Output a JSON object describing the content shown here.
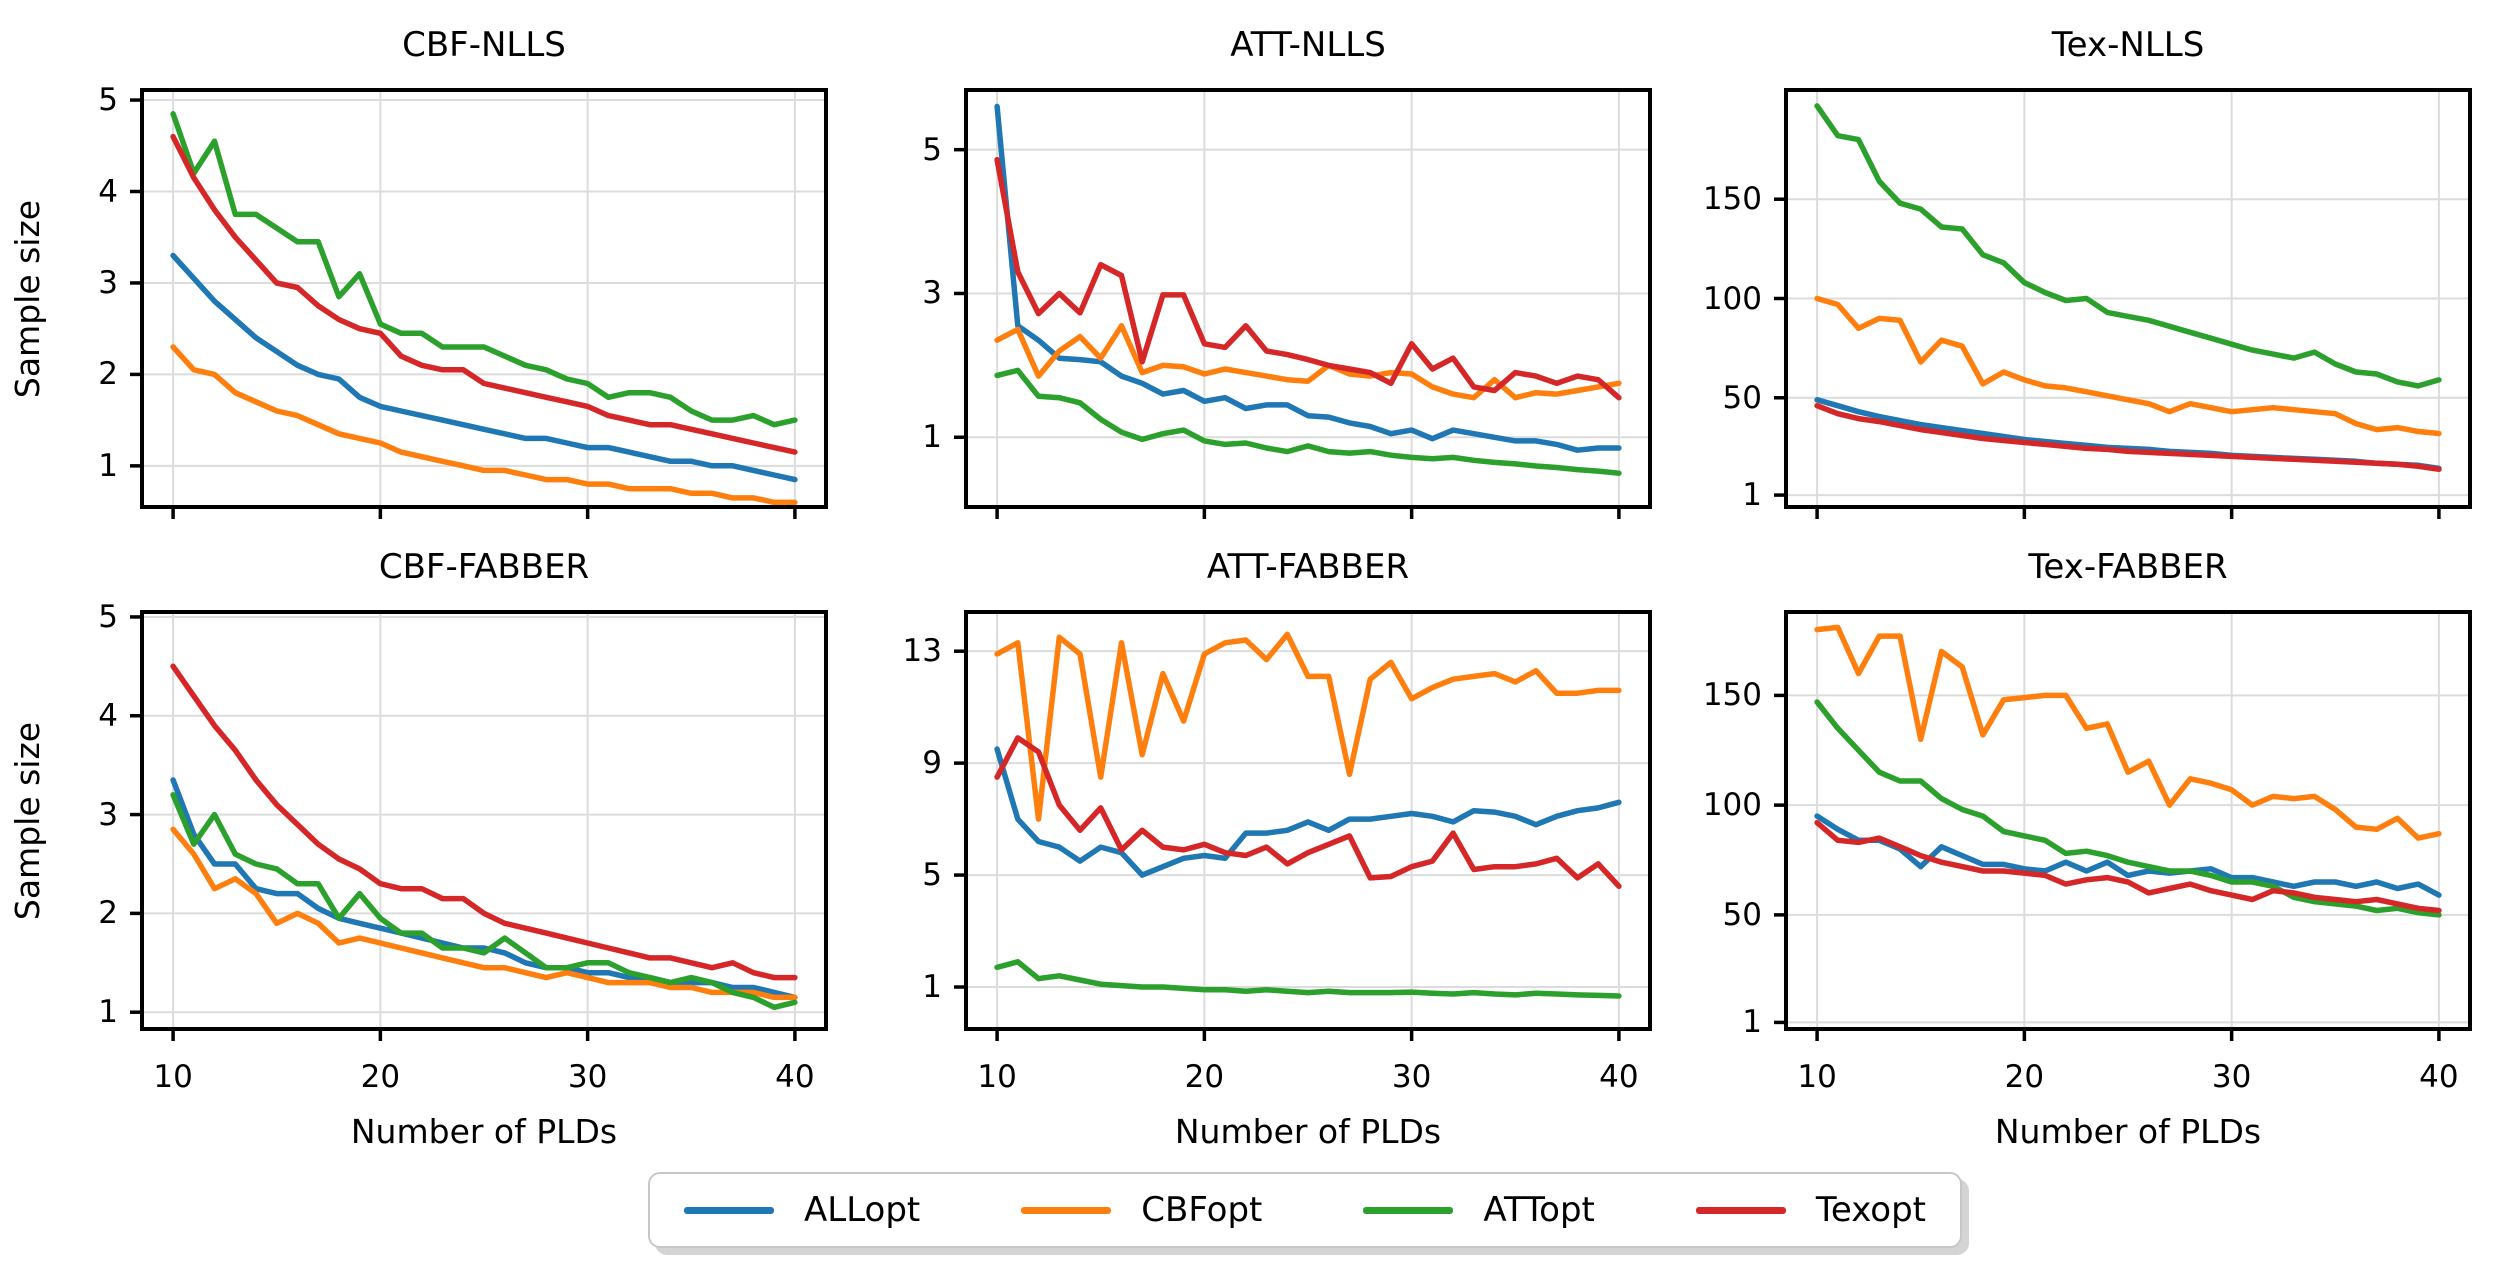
{
  "figure": {
    "ylabel": "Sample size",
    "xlabel": "Number of PLDs",
    "background": "#ffffff",
    "grid_color": "#dcdcdc",
    "spine_color": "#000000"
  },
  "legend": {
    "entries": [
      {
        "label": "ALLopt",
        "color": "#1f77b4"
      },
      {
        "label": "CBFopt",
        "color": "#ff7f0e"
      },
      {
        "label": "ATTopt",
        "color": "#2ca02c"
      },
      {
        "label": "Texopt",
        "color": "#d62728"
      }
    ]
  },
  "chart_data": [
    {
      "type": "line",
      "title": "CBF-NLLS",
      "xlabel": "",
      "ylabel": "Sample size",
      "x_start": 10,
      "x_end": 40,
      "xticks": [
        10,
        20,
        30,
        40
      ],
      "xlim": [
        8.5,
        41.5
      ],
      "yticks": [
        1,
        2,
        3,
        4,
        5
      ],
      "ylim": [
        0.55,
        5.11
      ],
      "grid": true,
      "show_xticklabels": false,
      "show_xlabel": false,
      "show_ylabel": true,
      "series": [
        {
          "name": "ALLopt",
          "color": "#1f77b4",
          "values": [
            3.3,
            3.05,
            2.8,
            2.6,
            2.4,
            2.25,
            2.1,
            2.0,
            1.95,
            1.75,
            1.65,
            1.6,
            1.55,
            1.5,
            1.45,
            1.4,
            1.35,
            1.3,
            1.3,
            1.25,
            1.2,
            1.2,
            1.15,
            1.1,
            1.05,
            1.05,
            1.0,
            1.0,
            0.95,
            0.9,
            0.85
          ]
        },
        {
          "name": "CBFopt",
          "color": "#ff7f0e",
          "values": [
            2.3,
            2.05,
            2.0,
            1.8,
            1.7,
            1.6,
            1.55,
            1.45,
            1.35,
            1.3,
            1.25,
            1.15,
            1.1,
            1.05,
            1.0,
            0.95,
            0.95,
            0.9,
            0.85,
            0.85,
            0.8,
            0.8,
            0.75,
            0.75,
            0.75,
            0.7,
            0.7,
            0.65,
            0.65,
            0.6,
            0.6
          ]
        },
        {
          "name": "ATTopt",
          "color": "#2ca02c",
          "values": [
            4.85,
            4.2,
            4.55,
            3.75,
            3.75,
            3.6,
            3.45,
            3.45,
            2.85,
            3.1,
            2.55,
            2.45,
            2.45,
            2.3,
            2.3,
            2.3,
            2.2,
            2.1,
            2.05,
            1.95,
            1.9,
            1.75,
            1.8,
            1.8,
            1.75,
            1.6,
            1.5,
            1.5,
            1.55,
            1.45,
            1.5
          ]
        },
        {
          "name": "Texopt",
          "color": "#d62728",
          "values": [
            4.6,
            4.15,
            3.8,
            3.5,
            3.25,
            3.0,
            2.95,
            2.75,
            2.6,
            2.5,
            2.45,
            2.2,
            2.1,
            2.05,
            2.05,
            1.9,
            1.85,
            1.8,
            1.75,
            1.7,
            1.65,
            1.55,
            1.5,
            1.45,
            1.45,
            1.4,
            1.35,
            1.3,
            1.25,
            1.2,
            1.15
          ]
        }
      ]
    },
    {
      "type": "line",
      "title": "ATT-NLLS",
      "xlabel": "",
      "ylabel": "",
      "x_start": 10,
      "x_end": 40,
      "xticks": [
        10,
        20,
        30,
        40
      ],
      "xlim": [
        8.5,
        41.5
      ],
      "yticks": [
        1,
        3,
        5
      ],
      "ylim": [
        0.03,
        5.83
      ],
      "grid": true,
      "show_xticklabels": false,
      "show_xlabel": false,
      "show_ylabel": false,
      "series": [
        {
          "name": "ALLopt",
          "color": "#1f77b4",
          "values": [
            5.6,
            2.55,
            2.35,
            2.1,
            2.08,
            2.05,
            1.85,
            1.75,
            1.6,
            1.65,
            1.5,
            1.55,
            1.4,
            1.45,
            1.45,
            1.3,
            1.28,
            1.2,
            1.15,
            1.05,
            1.1,
            0.98,
            1.1,
            1.05,
            1.0,
            0.95,
            0.95,
            0.9,
            0.82,
            0.85,
            0.85
          ]
        },
        {
          "name": "CBFopt",
          "color": "#ff7f0e",
          "values": [
            2.35,
            2.5,
            1.85,
            2.2,
            2.4,
            2.1,
            2.55,
            1.9,
            2.0,
            1.98,
            1.88,
            1.95,
            1.9,
            1.85,
            1.8,
            1.78,
            2.0,
            1.88,
            1.85,
            1.9,
            1.88,
            1.7,
            1.6,
            1.55,
            1.8,
            1.55,
            1.62,
            1.6,
            1.65,
            1.7,
            1.75
          ]
        },
        {
          "name": "ATTopt",
          "color": "#2ca02c",
          "values": [
            1.86,
            1.93,
            1.57,
            1.55,
            1.48,
            1.25,
            1.07,
            0.97,
            1.05,
            1.1,
            0.95,
            0.9,
            0.92,
            0.85,
            0.8,
            0.88,
            0.8,
            0.78,
            0.8,
            0.75,
            0.72,
            0.7,
            0.72,
            0.68,
            0.65,
            0.63,
            0.6,
            0.58,
            0.55,
            0.53,
            0.5
          ]
        },
        {
          "name": "Texopt",
          "color": "#d62728",
          "values": [
            4.86,
            3.3,
            2.72,
            3.0,
            2.73,
            3.4,
            3.25,
            2.05,
            2.98,
            2.98,
            2.3,
            2.25,
            2.55,
            2.2,
            2.15,
            2.08,
            2.0,
            1.95,
            1.9,
            1.75,
            2.3,
            1.95,
            2.1,
            1.7,
            1.65,
            1.9,
            1.85,
            1.75,
            1.85,
            1.8,
            1.55
          ]
        }
      ]
    },
    {
      "type": "line",
      "title": "Tex-NLLS",
      "xlabel": "",
      "ylabel": "",
      "x_start": 10,
      "x_end": 40,
      "xticks": [
        10,
        20,
        30,
        40
      ],
      "xlim": [
        8.5,
        41.5
      ],
      "yticks": [
        1,
        50,
        100,
        150
      ],
      "ylim": [
        -5,
        205
      ],
      "grid": true,
      "show_xticklabels": false,
      "show_xlabel": false,
      "show_ylabel": false,
      "series": [
        {
          "name": "ALLopt",
          "color": "#1f77b4",
          "values": [
            49,
            46,
            43,
            40.5,
            38.5,
            36.5,
            35,
            33.5,
            32,
            30.5,
            29,
            28,
            27,
            26,
            25,
            24.5,
            24,
            23,
            22.5,
            22,
            21,
            20.5,
            20,
            19.5,
            19,
            18.5,
            18,
            17,
            16.5,
            16,
            14.5
          ]
        },
        {
          "name": "CBFopt",
          "color": "#ff7f0e",
          "values": [
            100,
            97,
            85,
            90,
            89,
            68,
            79,
            76,
            57,
            63,
            59,
            56,
            55,
            53,
            51,
            49,
            47,
            43,
            47,
            45,
            43,
            44,
            45,
            44,
            43,
            42,
            37,
            34,
            35,
            33,
            32
          ]
        },
        {
          "name": "ATTopt",
          "color": "#2ca02c",
          "values": [
            197,
            182,
            180,
            159,
            148,
            145,
            136,
            135,
            122,
            118,
            108,
            103,
            99,
            100,
            93,
            91,
            89,
            86,
            83,
            80,
            77,
            74,
            72,
            70,
            73,
            67,
            63,
            62,
            58,
            56,
            59
          ]
        },
        {
          "name": "Texopt",
          "color": "#d62728",
          "values": [
            46,
            42,
            39.5,
            38,
            36,
            34,
            32.5,
            31,
            29.5,
            28.5,
            27.5,
            26.5,
            25.5,
            24.5,
            24,
            23,
            22.5,
            22,
            21.5,
            21,
            20.5,
            20,
            19.5,
            19,
            18.5,
            18,
            17.5,
            17,
            16.5,
            15.5,
            14
          ]
        }
      ]
    },
    {
      "type": "line",
      "title": "CBF-FABBER",
      "xlabel": "Number of PLDs",
      "ylabel": "Sample size",
      "x_start": 10,
      "x_end": 40,
      "xticks": [
        10,
        20,
        30,
        40
      ],
      "xlim": [
        8.5,
        41.5
      ],
      "yticks": [
        1,
        2,
        3,
        4,
        5
      ],
      "ylim": [
        0.83,
        5.05
      ],
      "grid": true,
      "show_xticklabels": true,
      "show_xlabel": true,
      "show_ylabel": true,
      "series": [
        {
          "name": "ALLopt",
          "color": "#1f77b4",
          "values": [
            3.35,
            2.8,
            2.5,
            2.5,
            2.25,
            2.2,
            2.2,
            2.05,
            1.95,
            1.9,
            1.85,
            1.8,
            1.75,
            1.7,
            1.65,
            1.65,
            1.6,
            1.5,
            1.45,
            1.45,
            1.4,
            1.4,
            1.35,
            1.35,
            1.3,
            1.3,
            1.3,
            1.25,
            1.25,
            1.2,
            1.15
          ]
        },
        {
          "name": "CBFopt",
          "color": "#ff7f0e",
          "values": [
            2.85,
            2.6,
            2.25,
            2.35,
            2.2,
            1.9,
            2.0,
            1.9,
            1.7,
            1.75,
            1.7,
            1.65,
            1.6,
            1.55,
            1.5,
            1.45,
            1.45,
            1.4,
            1.35,
            1.4,
            1.35,
            1.3,
            1.3,
            1.3,
            1.25,
            1.25,
            1.2,
            1.2,
            1.2,
            1.15,
            1.15
          ]
        },
        {
          "name": "ATTopt",
          "color": "#2ca02c",
          "values": [
            3.2,
            2.7,
            3.0,
            2.6,
            2.5,
            2.45,
            2.3,
            2.3,
            1.95,
            2.2,
            1.95,
            1.8,
            1.8,
            1.65,
            1.65,
            1.6,
            1.75,
            1.6,
            1.45,
            1.45,
            1.5,
            1.5,
            1.4,
            1.35,
            1.3,
            1.35,
            1.3,
            1.2,
            1.15,
            1.05,
            1.1
          ]
        },
        {
          "name": "Texopt",
          "color": "#d62728",
          "values": [
            4.5,
            4.2,
            3.9,
            3.65,
            3.35,
            3.1,
            2.9,
            2.7,
            2.55,
            2.45,
            2.3,
            2.25,
            2.25,
            2.15,
            2.15,
            2.0,
            1.9,
            1.85,
            1.8,
            1.75,
            1.7,
            1.65,
            1.6,
            1.55,
            1.55,
            1.5,
            1.45,
            1.5,
            1.4,
            1.35,
            1.35
          ]
        }
      ]
    },
    {
      "type": "line",
      "title": "ATT-FABBER",
      "xlabel": "Number of PLDs",
      "ylabel": "",
      "x_start": 10,
      "x_end": 40,
      "xticks": [
        10,
        20,
        30,
        40
      ],
      "xlim": [
        8.5,
        41.5
      ],
      "yticks": [
        1,
        5,
        9,
        13
      ],
      "ylim": [
        -0.5,
        14.4
      ],
      "grid": true,
      "show_xticklabels": true,
      "show_xlabel": true,
      "show_ylabel": false,
      "series": [
        {
          "name": "ALLopt",
          "color": "#1f77b4",
          "values": [
            9.5,
            7.0,
            6.2,
            6.0,
            5.5,
            6.0,
            5.8,
            5.0,
            5.3,
            5.6,
            5.7,
            5.6,
            6.5,
            6.5,
            6.6,
            6.9,
            6.6,
            7.0,
            7.0,
            7.1,
            7.2,
            7.1,
            6.9,
            7.3,
            7.25,
            7.1,
            6.8,
            7.1,
            7.3,
            7.4,
            7.6
          ]
        },
        {
          "name": "CBFopt",
          "color": "#ff7f0e",
          "values": [
            12.9,
            13.3,
            7.0,
            13.5,
            12.9,
            8.5,
            13.3,
            9.3,
            12.2,
            10.5,
            12.9,
            13.3,
            13.4,
            12.7,
            13.6,
            12.1,
            12.1,
            8.6,
            12.0,
            12.6,
            11.3,
            11.7,
            12.0,
            12.1,
            12.2,
            11.9,
            12.3,
            11.5,
            11.5,
            11.6,
            11.6
          ]
        },
        {
          "name": "ATTopt",
          "color": "#2ca02c",
          "values": [
            1.7,
            1.9,
            1.3,
            1.4,
            1.25,
            1.1,
            1.05,
            1.0,
            1.0,
            0.95,
            0.9,
            0.9,
            0.85,
            0.9,
            0.85,
            0.8,
            0.85,
            0.8,
            0.8,
            0.8,
            0.82,
            0.78,
            0.75,
            0.8,
            0.75,
            0.72,
            0.78,
            0.75,
            0.72,
            0.7,
            0.68
          ]
        },
        {
          "name": "Texopt",
          "color": "#d62728",
          "values": [
            8.5,
            9.9,
            9.4,
            7.5,
            6.6,
            7.4,
            5.9,
            6.6,
            6.0,
            5.9,
            6.1,
            5.8,
            5.7,
            6.0,
            5.4,
            5.8,
            6.1,
            6.4,
            4.9,
            4.95,
            5.3,
            5.5,
            6.5,
            5.2,
            5.3,
            5.3,
            5.4,
            5.6,
            4.9,
            5.4,
            4.6
          ]
        }
      ]
    },
    {
      "type": "line",
      "title": "Tex-FABBER",
      "xlabel": "Number of PLDs",
      "ylabel": "",
      "x_start": 10,
      "x_end": 40,
      "xticks": [
        10,
        20,
        30,
        40
      ],
      "xlim": [
        8.5,
        41.5
      ],
      "yticks": [
        1,
        50,
        100,
        150
      ],
      "ylim": [
        -2,
        188
      ],
      "grid": true,
      "show_xticklabels": true,
      "show_xlabel": true,
      "show_ylabel": false,
      "series": [
        {
          "name": "ALLopt",
          "color": "#1f77b4",
          "values": [
            95,
            89,
            84,
            84,
            80,
            72,
            81,
            77,
            73,
            73,
            71,
            70,
            74,
            70,
            74,
            68,
            70,
            69,
            70,
            71,
            67,
            67,
            65,
            63,
            65,
            65,
            63,
            65,
            62,
            64,
            59
          ]
        },
        {
          "name": "CBFopt",
          "color": "#ff7f0e",
          "values": [
            180,
            181,
            160,
            177,
            177,
            130,
            170,
            163,
            132,
            148,
            149,
            150,
            150,
            135,
            137,
            115,
            120,
            100,
            112,
            110,
            107,
            100,
            104,
            103,
            104,
            98,
            90,
            89,
            94,
            85,
            87
          ]
        },
        {
          "name": "ATTopt",
          "color": "#2ca02c",
          "values": [
            147,
            135,
            125,
            115,
            111,
            111,
            103,
            98,
            95,
            88,
            86,
            84,
            78,
            79,
            77,
            74,
            72,
            70,
            70,
            68,
            65,
            65,
            63,
            58,
            56,
            55,
            54,
            52,
            53,
            51,
            50
          ]
        },
        {
          "name": "Texopt",
          "color": "#d62728",
          "values": [
            92,
            84,
            83,
            85,
            81,
            77,
            74,
            72,
            70,
            70,
            69,
            68,
            64,
            66,
            67,
            65,
            60,
            62,
            64,
            61,
            59,
            57,
            61,
            60,
            58,
            57,
            56,
            57,
            55,
            53,
            52
          ]
        }
      ]
    }
  ]
}
